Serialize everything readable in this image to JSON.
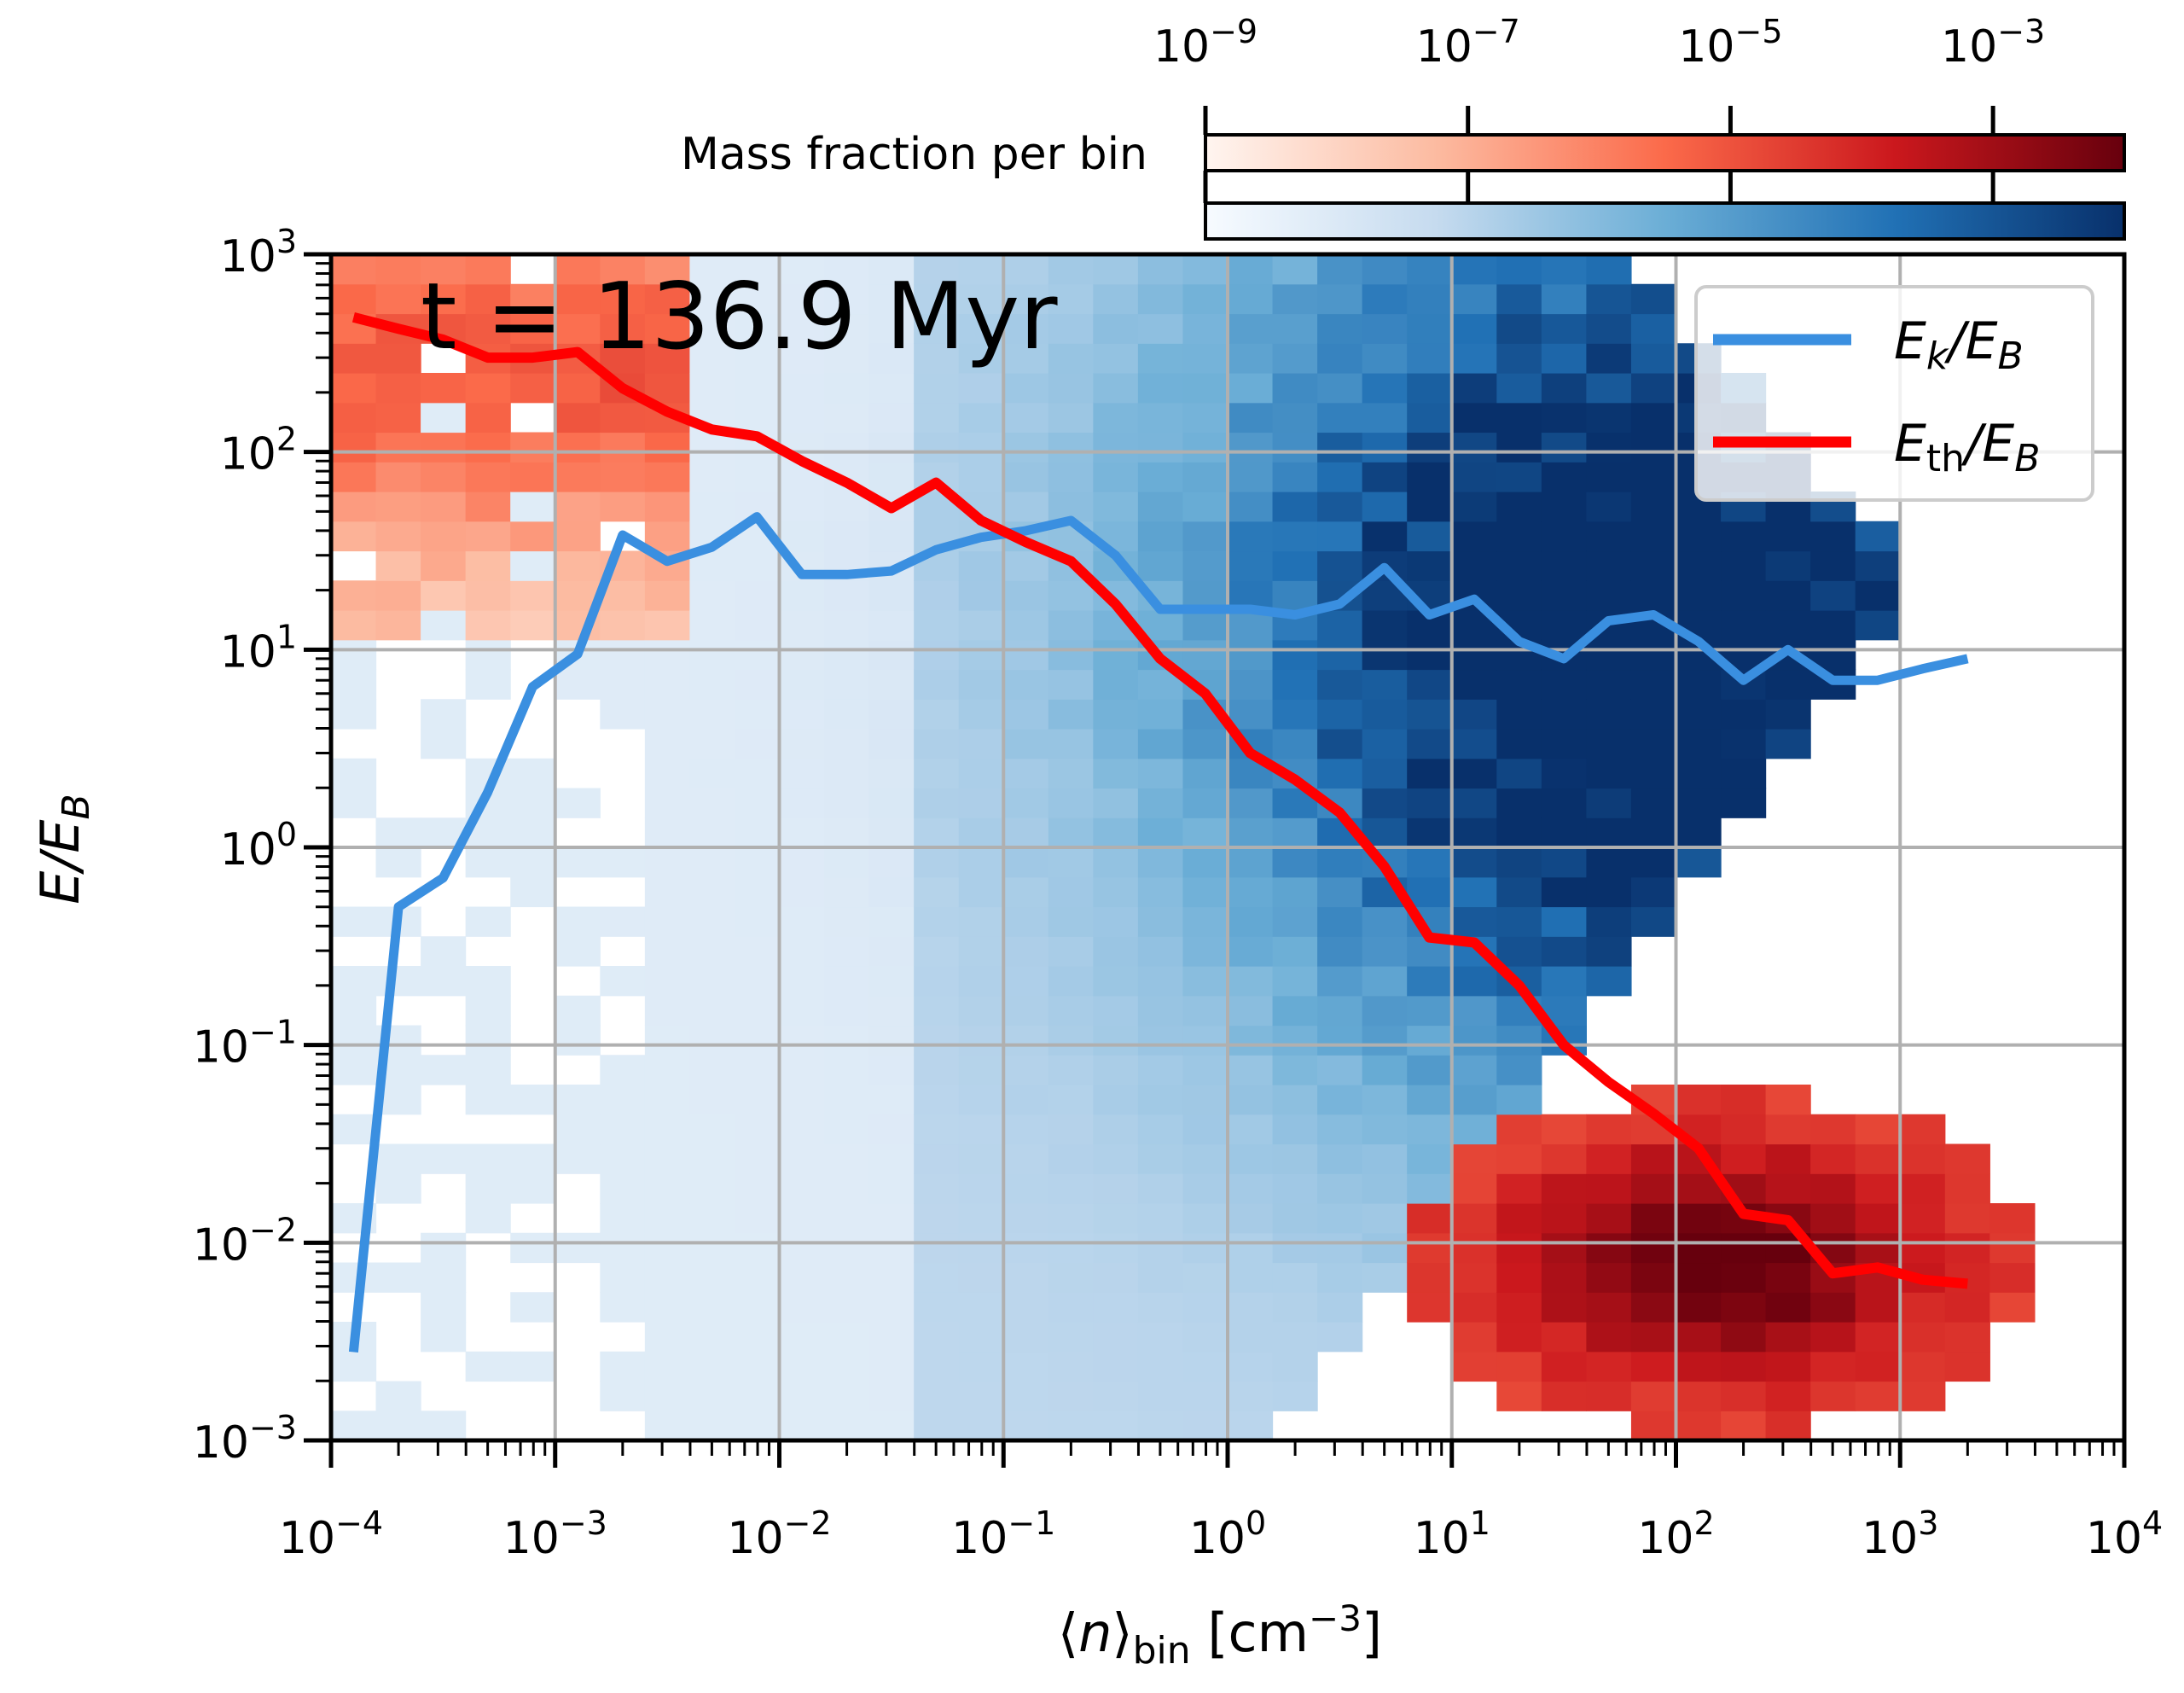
{
  "chart_data": {
    "type": "heatmap",
    "annotation": "t = 136.9 Myr",
    "xlabel": "⟨n⟩bin [cm⁻³]",
    "ylabel": "E/EB",
    "x_scale": "log",
    "y_scale": "log",
    "xlim": [
      0.0001,
      10000
    ],
    "ylim": [
      0.001,
      1000
    ],
    "x_ticks": [
      {
        "value": 0.0001,
        "base": "10",
        "exp": "−4"
      },
      {
        "value": 0.001,
        "base": "10",
        "exp": "−3"
      },
      {
        "value": 0.01,
        "base": "10",
        "exp": "−2"
      },
      {
        "value": 0.1,
        "base": "10",
        "exp": "−1"
      },
      {
        "value": 1,
        "base": "10",
        "exp": "0"
      },
      {
        "value": 10,
        "base": "10",
        "exp": "1"
      },
      {
        "value": 100,
        "base": "10",
        "exp": "2"
      },
      {
        "value": 1000,
        "base": "10",
        "exp": "3"
      },
      {
        "value": 10000,
        "base": "10",
        "exp": "4"
      }
    ],
    "y_ticks": [
      {
        "value": 0.001,
        "base": "10",
        "exp": "−3"
      },
      {
        "value": 0.01,
        "base": "10",
        "exp": "−2"
      },
      {
        "value": 0.1,
        "base": "10",
        "exp": "−1"
      },
      {
        "value": 1,
        "base": "10",
        "exp": "0"
      },
      {
        "value": 10,
        "base": "10",
        "exp": "1"
      },
      {
        "value": 100,
        "base": "10",
        "exp": "2"
      },
      {
        "value": 1000,
        "base": "10",
        "exp": "3"
      }
    ],
    "grid": true,
    "colorbar": {
      "label": "Mass fraction per bin",
      "scale": "log",
      "range": [
        1e-09,
        0.01
      ],
      "ticks": [
        {
          "value": 1e-09,
          "base": "10",
          "exp": "−9"
        },
        {
          "value": 1e-07,
          "base": "10",
          "exp": "−7"
        },
        {
          "value": 1e-05,
          "base": "10",
          "exp": "−5"
        },
        {
          "value": 0.001,
          "base": "10",
          "exp": "−3"
        }
      ],
      "maps": [
        {
          "name": "Reds",
          "colors": [
            "#fff5f0",
            "#fcbba1",
            "#fb6a4a",
            "#cb181d",
            "#67000d"
          ]
        },
        {
          "name": "Blues",
          "colors": [
            "#f7fbff",
            "#c6dbef",
            "#6baed6",
            "#2171b5",
            "#08306b"
          ]
        }
      ]
    },
    "heatmap": {
      "description": "2D histograms of mass fraction per bin; blue = kinetic energy ratio, red = thermal energy ratio",
      "bins_x": 40,
      "bins_y": 40
    },
    "series": [
      {
        "name": "Ek/EB",
        "label_main": "E",
        "label_sub": "k",
        "label_tail": "/E",
        "label_tail_sub": "B",
        "color": "#3a8fe0",
        "x": [
          0.000126,
          0.0002,
          0.000316,
          0.0005,
          0.000794,
          0.00126,
          0.002,
          0.00316,
          0.005,
          0.00794,
          0.0126,
          0.02,
          0.0316,
          0.05,
          0.0794,
          0.126,
          0.2,
          0.316,
          0.5,
          0.794,
          1.26,
          2.0,
          3.16,
          5.0,
          7.94,
          12.6,
          20,
          31.6,
          50,
          79.4,
          126,
          200,
          316,
          500,
          794,
          1260,
          2000
        ],
        "y": [
          0.0028,
          0.5,
          0.7,
          1.9,
          6.5,
          9.5,
          38,
          28,
          33,
          47,
          24,
          24,
          25,
          32,
          37,
          40,
          45,
          30,
          16,
          16,
          16,
          15,
          17,
          26,
          15,
          18,
          11,
          9,
          14,
          15,
          11,
          7,
          10,
          7,
          7,
          8,
          9
        ]
      },
      {
        "name": "Eth/EB",
        "label_main": "E",
        "label_sub": "th",
        "label_tail": "/E",
        "label_tail_sub": "B",
        "color": "#ff0000",
        "x": [
          0.000126,
          0.0002,
          0.000316,
          0.0005,
          0.000794,
          0.00126,
          0.002,
          0.00316,
          0.005,
          0.00794,
          0.0126,
          0.02,
          0.0316,
          0.05,
          0.0794,
          0.126,
          0.2,
          0.316,
          0.5,
          0.794,
          1.26,
          2.0,
          3.16,
          5.0,
          7.94,
          12.6,
          20,
          31.6,
          50,
          79.4,
          126,
          200,
          316,
          500,
          794,
          1260,
          2000
        ],
        "y": [
          480,
          420,
          370,
          300,
          300,
          320,
          210,
          160,
          130,
          120,
          90,
          70,
          52,
          70,
          45,
          35,
          28,
          17,
          9,
          6,
          3,
          2.2,
          1.5,
          0.8,
          0.35,
          0.33,
          0.2,
          0.1,
          0.065,
          0.045,
          0.03,
          0.014,
          0.013,
          0.007,
          0.0075,
          0.0065,
          0.0062
        ]
      }
    ]
  }
}
